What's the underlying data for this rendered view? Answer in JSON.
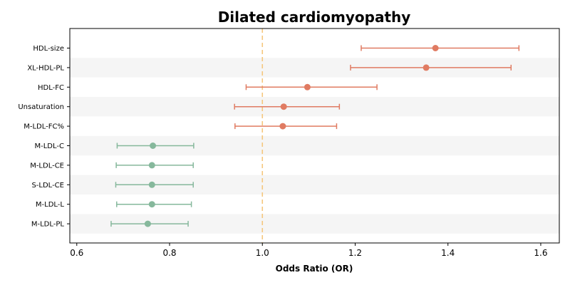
{
  "chart_data": {
    "type": "forest",
    "title": "Dilated cardiomyopathy",
    "xlabel": "Odds Ratio (OR)",
    "ylabel": "",
    "xlim": [
      0.585,
      1.64
    ],
    "xticks": [
      0.6,
      0.8,
      1.0,
      1.2,
      1.4,
      1.6
    ],
    "xtick_labels": [
      "0.6",
      "0.8",
      "1.0",
      "1.2",
      "1.4",
      "1.6"
    ],
    "reference_line": 1.0,
    "grid": false,
    "alternating_row_shading": true,
    "colors": {
      "risk": "#e07b62",
      "protective": "#86b89c",
      "reference": "#f5c77e",
      "row_shade": "#f5f5f5"
    },
    "rows": [
      {
        "label": "HDL-size",
        "or": 1.373,
        "lower": 1.213,
        "upper": 1.553,
        "group": "risk"
      },
      {
        "label": "XL-HDL-PL",
        "or": 1.353,
        "lower": 1.19,
        "upper": 1.536,
        "group": "risk"
      },
      {
        "label": "HDL-FC",
        "or": 1.097,
        "lower": 0.965,
        "upper": 1.247,
        "group": "risk"
      },
      {
        "label": "Unsaturation",
        "or": 1.046,
        "lower": 0.94,
        "upper": 1.166,
        "group": "risk"
      },
      {
        "label": "M-LDL-FC%",
        "or": 1.044,
        "lower": 0.941,
        "upper": 1.16,
        "group": "risk"
      },
      {
        "label": "M-LDL-C",
        "or": 0.764,
        "lower": 0.687,
        "upper": 0.852,
        "group": "protective"
      },
      {
        "label": "M-LDL-CE",
        "or": 0.762,
        "lower": 0.685,
        "upper": 0.851,
        "group": "protective"
      },
      {
        "label": "S-LDL-CE",
        "or": 0.762,
        "lower": 0.684,
        "upper": 0.851,
        "group": "protective"
      },
      {
        "label": "M-LDL-L",
        "or": 0.762,
        "lower": 0.686,
        "upper": 0.847,
        "group": "protective"
      },
      {
        "label": "M-LDL-PL",
        "or": 0.753,
        "lower": 0.674,
        "upper": 0.84,
        "group": "protective"
      }
    ]
  }
}
